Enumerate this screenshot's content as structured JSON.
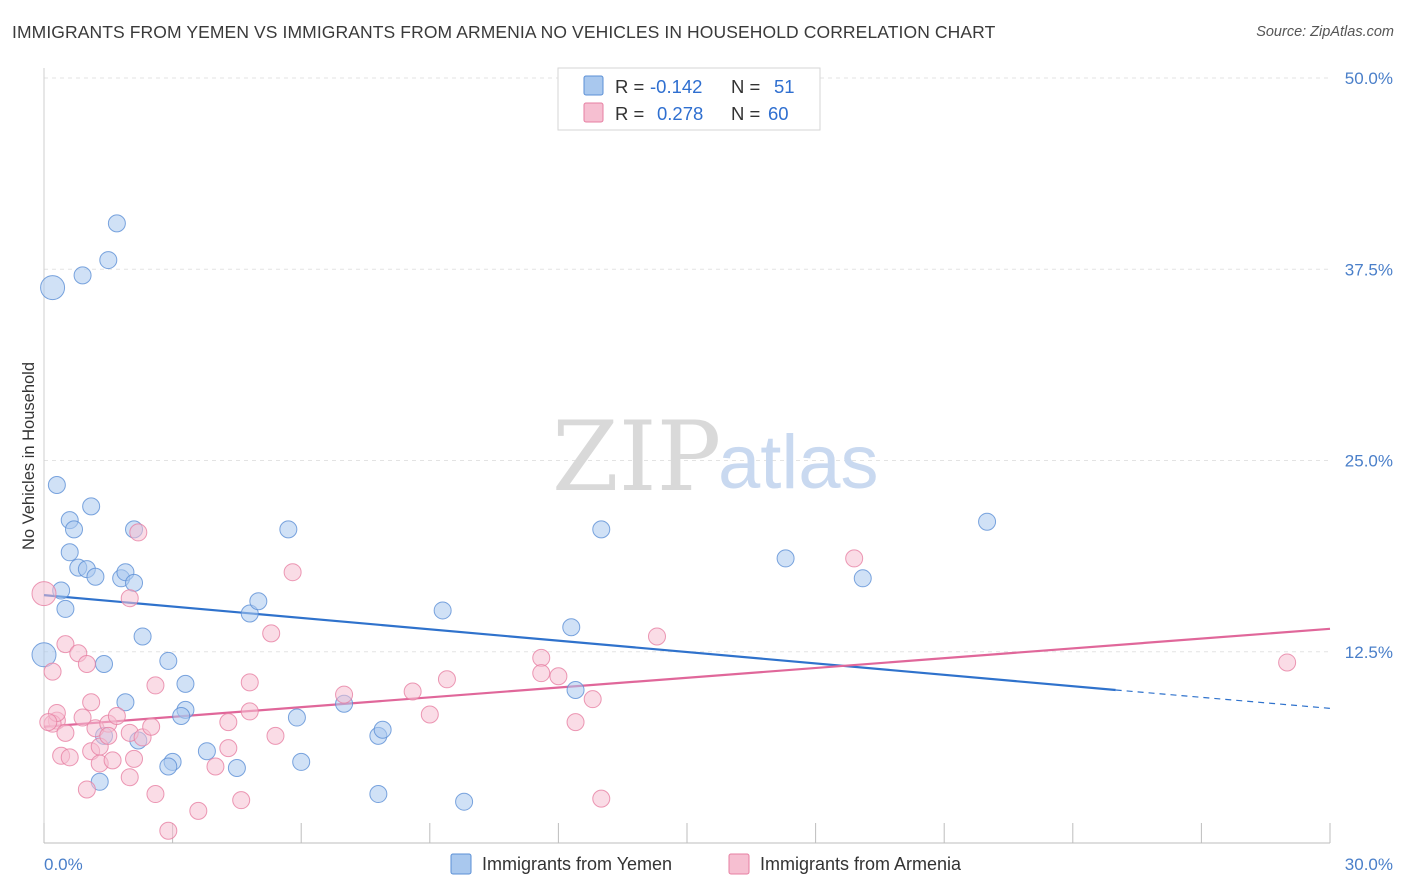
{
  "title": "IMMIGRANTS FROM YEMEN VS IMMIGRANTS FROM ARMENIA NO VEHICLES IN HOUSEHOLD CORRELATION CHART",
  "source": "Source: ZipAtlas.com",
  "watermark": {
    "zip": "ZIP",
    "atlas": "atlas"
  },
  "legend": {
    "rows": [
      {
        "r_label": "R =",
        "r_value": "-0.142",
        "n_label": "N =",
        "n_value": "51"
      },
      {
        "r_label": "R =",
        "r_value": "0.278",
        "n_label": "N =",
        "n_value": "60"
      }
    ]
  },
  "colors": {
    "yemen_fill": "#a9c8ee",
    "yemen_stroke": "#5b8fd6",
    "yemen_line": "#2f72cc",
    "armenia_fill": "#f6bfd1",
    "armenia_stroke": "#e77fa2",
    "armenia_line": "#e0679a",
    "axis_text": "#4a7fc9",
    "grid": "#e3e3e3"
  },
  "chart_data": {
    "type": "scatter",
    "xlabel": "",
    "ylabel": "No Vehicles in Household",
    "xlim": [
      0,
      30
    ],
    "ylim": [
      0,
      50
    ],
    "x_ticks": [
      "0.0%",
      "30.0%"
    ],
    "y_ticks": [
      "12.5%",
      "25.0%",
      "37.5%",
      "50.0%"
    ],
    "y_tick_values": [
      12.5,
      25.0,
      37.5,
      50.0
    ],
    "grid": true,
    "legend_position": "top-center",
    "series": [
      {
        "name": "Immigrants from Yemen",
        "R": -0.142,
        "N": 51,
        "trend": {
          "x": [
            0,
            25.0
          ],
          "y": [
            16.2,
            10.0
          ],
          "dashed_extension": {
            "x": [
              25.0,
              30.0
            ],
            "y": [
              10.0,
              8.8
            ]
          }
        },
        "points": [
          {
            "x": 0.2,
            "y": 36.3,
            "big": true
          },
          {
            "x": 0.0,
            "y": 12.3,
            "big": true
          },
          {
            "x": 0.9,
            "y": 37.1
          },
          {
            "x": 1.5,
            "y": 38.1
          },
          {
            "x": 1.7,
            "y": 40.5
          },
          {
            "x": 0.3,
            "y": 23.4
          },
          {
            "x": 0.6,
            "y": 21.1
          },
          {
            "x": 0.7,
            "y": 20.5
          },
          {
            "x": 1.1,
            "y": 22.0
          },
          {
            "x": 0.6,
            "y": 19.0
          },
          {
            "x": 0.8,
            "y": 18.0
          },
          {
            "x": 1.0,
            "y": 17.9
          },
          {
            "x": 1.2,
            "y": 17.4
          },
          {
            "x": 1.8,
            "y": 17.3
          },
          {
            "x": 1.9,
            "y": 17.7
          },
          {
            "x": 2.1,
            "y": 17.0
          },
          {
            "x": 2.1,
            "y": 20.5
          },
          {
            "x": 0.4,
            "y": 16.5
          },
          {
            "x": 0.5,
            "y": 15.3
          },
          {
            "x": 2.3,
            "y": 13.5
          },
          {
            "x": 1.4,
            "y": 11.7
          },
          {
            "x": 2.9,
            "y": 11.9
          },
          {
            "x": 3.3,
            "y": 10.4
          },
          {
            "x": 1.9,
            "y": 9.2
          },
          {
            "x": 3.3,
            "y": 8.7
          },
          {
            "x": 3.2,
            "y": 8.3
          },
          {
            "x": 2.2,
            "y": 6.7
          },
          {
            "x": 1.4,
            "y": 7.0
          },
          {
            "x": 3.0,
            "y": 5.3
          },
          {
            "x": 2.9,
            "y": 5.0
          },
          {
            "x": 3.8,
            "y": 6.0
          },
          {
            "x": 4.5,
            "y": 4.9
          },
          {
            "x": 1.3,
            "y": 4.0
          },
          {
            "x": 4.8,
            "y": 15.0
          },
          {
            "x": 5.0,
            "y": 15.8
          },
          {
            "x": 5.7,
            "y": 20.5
          },
          {
            "x": 5.9,
            "y": 8.2
          },
          {
            "x": 6.0,
            "y": 5.3
          },
          {
            "x": 7.0,
            "y": 9.1
          },
          {
            "x": 7.8,
            "y": 7.0
          },
          {
            "x": 7.9,
            "y": 7.4
          },
          {
            "x": 7.8,
            "y": 3.2
          },
          {
            "x": 9.3,
            "y": 15.2
          },
          {
            "x": 9.8,
            "y": 2.7
          },
          {
            "x": 12.3,
            "y": 14.1
          },
          {
            "x": 12.4,
            "y": 10.0
          },
          {
            "x": 13.0,
            "y": 20.5
          },
          {
            "x": 17.3,
            "y": 18.6
          },
          {
            "x": 19.1,
            "y": 17.3
          },
          {
            "x": 22.0,
            "y": 21.0
          }
        ]
      },
      {
        "name": "Immigrants from Armenia",
        "R": 0.278,
        "N": 60,
        "trend": {
          "x": [
            0,
            30.0
          ],
          "y": [
            7.6,
            14.0
          ]
        },
        "points": [
          {
            "x": 0.0,
            "y": 16.3,
            "big": true
          },
          {
            "x": 0.2,
            "y": 11.2
          },
          {
            "x": 0.3,
            "y": 8.0
          },
          {
            "x": 0.2,
            "y": 7.8
          },
          {
            "x": 0.3,
            "y": 8.5
          },
          {
            "x": 0.4,
            "y": 5.7
          },
          {
            "x": 0.5,
            "y": 7.2
          },
          {
            "x": 0.6,
            "y": 5.6
          },
          {
            "x": 0.5,
            "y": 13.0
          },
          {
            "x": 0.8,
            "y": 12.4
          },
          {
            "x": 0.9,
            "y": 8.2
          },
          {
            "x": 1.0,
            "y": 11.7
          },
          {
            "x": 1.1,
            "y": 9.2
          },
          {
            "x": 1.2,
            "y": 7.5
          },
          {
            "x": 1.1,
            "y": 6.0
          },
          {
            "x": 1.3,
            "y": 6.3
          },
          {
            "x": 1.3,
            "y": 5.2
          },
          {
            "x": 1.5,
            "y": 7.8
          },
          {
            "x": 1.6,
            "y": 5.4
          },
          {
            "x": 1.7,
            "y": 8.3
          },
          {
            "x": 1.0,
            "y": 3.5
          },
          {
            "x": 1.5,
            "y": 7.0
          },
          {
            "x": 2.0,
            "y": 16.0
          },
          {
            "x": 2.0,
            "y": 7.2
          },
          {
            "x": 2.1,
            "y": 5.5
          },
          {
            "x": 2.0,
            "y": 4.3
          },
          {
            "x": 2.3,
            "y": 6.9
          },
          {
            "x": 2.5,
            "y": 7.6
          },
          {
            "x": 2.6,
            "y": 10.3
          },
          {
            "x": 2.6,
            "y": 3.2
          },
          {
            "x": 2.2,
            "y": 20.3
          },
          {
            "x": 2.9,
            "y": 0.8
          },
          {
            "x": 3.6,
            "y": 2.1
          },
          {
            "x": 4.0,
            "y": 5.0
          },
          {
            "x": 4.3,
            "y": 7.9
          },
          {
            "x": 4.3,
            "y": 6.2
          },
          {
            "x": 4.6,
            "y": 2.8
          },
          {
            "x": 4.8,
            "y": 8.6
          },
          {
            "x": 4.8,
            "y": 10.5
          },
          {
            "x": 5.3,
            "y": 13.7
          },
          {
            "x": 5.4,
            "y": 7.0
          },
          {
            "x": 5.8,
            "y": 17.7
          },
          {
            "x": 7.0,
            "y": 9.7
          },
          {
            "x": 8.6,
            "y": 9.9
          },
          {
            "x": 9.0,
            "y": 8.4
          },
          {
            "x": 9.4,
            "y": 10.7
          },
          {
            "x": 11.6,
            "y": 12.1
          },
          {
            "x": 11.6,
            "y": 11.1
          },
          {
            "x": 12.0,
            "y": 10.9
          },
          {
            "x": 12.4,
            "y": 7.9
          },
          {
            "x": 12.8,
            "y": 9.4
          },
          {
            "x": 13.0,
            "y": 2.9
          },
          {
            "x": 14.3,
            "y": 13.5
          },
          {
            "x": 18.9,
            "y": 18.6
          },
          {
            "x": 29.0,
            "y": 11.8
          },
          {
            "x": 0.1,
            "y": 7.9
          }
        ]
      }
    ]
  },
  "bottom_legend": [
    {
      "label": "Immigrants from Yemen"
    },
    {
      "label": "Immigrants from Armenia"
    }
  ]
}
